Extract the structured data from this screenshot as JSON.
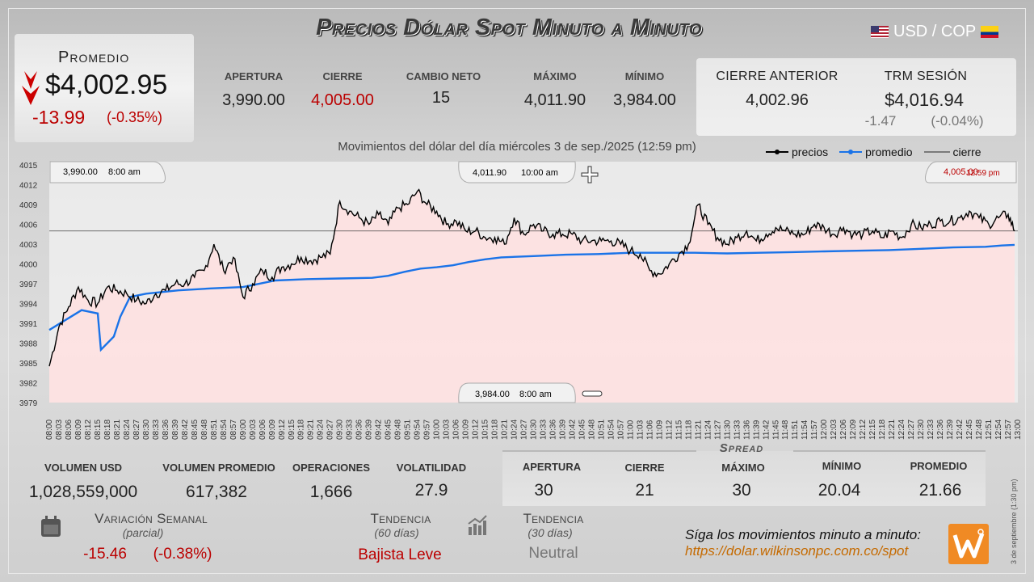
{
  "header": {
    "title": "Precios Dólar Spot Minuto a Minuto",
    "pair": "USD / COP"
  },
  "average": {
    "label": "Promedio",
    "price": "$4,002.95",
    "change": "-13.99",
    "change_pct": "(-0.35%)"
  },
  "stats": {
    "apertura": {
      "label": "APERTURA",
      "value": "3,990.00"
    },
    "cierre": {
      "label": "CIERRE",
      "value": "4,005.00"
    },
    "cambio_neto": {
      "label": "CAMBIO NETO",
      "value": "15"
    },
    "maximo": {
      "label": "MÁXIMO",
      "value": "4,011.90"
    },
    "minimo": {
      "label": "MÍNIMO",
      "value": "3,984.00"
    }
  },
  "previous": {
    "cierre_anterior_label": "CIERRE ANTERIOR",
    "cierre_anterior_value": "4,002.96",
    "trm_label": "TRM SESIÓN",
    "trm_value": "$4,016.94",
    "trm_change": "-1.47",
    "trm_pct": "(-0.04%)"
  },
  "chart_title": "Movimientos del dólar del día miércoles 3 de sep./2025 (12:59 pm)",
  "legend": {
    "precios": "precios",
    "promedio": "promedio",
    "cierre": "cierre"
  },
  "colors": {
    "precios": "#000000",
    "promedio": "#1a73e8",
    "cierre": "#444444",
    "fill": "#ffe0e0",
    "negative": "#bb0000"
  },
  "callouts": {
    "open_price": "3,990.00",
    "open_time": "8:00 am",
    "max_price": "4,011.90",
    "max_time": "10:00 am",
    "close_price": "4,005.00",
    "close_time": "12:59 pm",
    "min_price": "3,984.00",
    "min_time": "8:00 am"
  },
  "chart_data": {
    "type": "line",
    "ylim": [
      3979,
      4015.5
    ],
    "yticks": [
      3979,
      3982,
      3985,
      3988,
      3991,
      3994,
      3997,
      4000,
      4003,
      4006,
      4009,
      4012,
      4015
    ],
    "xticks": [
      "08:00",
      "08:03",
      "08:06",
      "08:09",
      "08:12",
      "08:15",
      "08:18",
      "08:21",
      "08:24",
      "08:27",
      "08:30",
      "08:33",
      "08:36",
      "08:39",
      "08:42",
      "08:45",
      "08:48",
      "08:51",
      "08:54",
      "08:57",
      "09:00",
      "09:03",
      "09:06",
      "09:09",
      "09:12",
      "09:15",
      "09:18",
      "09:21",
      "09:24",
      "09:27",
      "09:30",
      "09:33",
      "09:36",
      "09:39",
      "09:42",
      "09:45",
      "09:48",
      "09:51",
      "09:54",
      "09:57",
      "10:00",
      "10:03",
      "10:06",
      "10:09",
      "10:12",
      "10:15",
      "10:18",
      "10:21",
      "10:24",
      "10:27",
      "10:30",
      "10:33",
      "10:36",
      "10:39",
      "10:42",
      "10:45",
      "10:48",
      "10:51",
      "10:54",
      "10:57",
      "11:00",
      "11:03",
      "11:06",
      "11:09",
      "11:12",
      "11:15",
      "11:18",
      "11:21",
      "11:24",
      "11:27",
      "11:30",
      "11:33",
      "11:36",
      "11:39",
      "11:42",
      "11:45",
      "11:48",
      "11:51",
      "11:54",
      "11:57",
      "12:00",
      "12:03",
      "12:06",
      "12:09",
      "12:12",
      "12:15",
      "12:18",
      "12:21",
      "12:24",
      "12:27",
      "12:30",
      "12:33",
      "12:36",
      "12:39",
      "12:42",
      "12:45",
      "12:48",
      "12:51",
      "12:54",
      "12:57",
      "13:00"
    ],
    "series": [
      {
        "name": "precios",
        "x": [
          0,
          3,
          6,
          9,
          12,
          15,
          18,
          21,
          24,
          27,
          30,
          33,
          36,
          39,
          42,
          45,
          48,
          51,
          54,
          57,
          60,
          63,
          66,
          69,
          72,
          75,
          78,
          81,
          84,
          87,
          90,
          93,
          96,
          99,
          102,
          105,
          108,
          111,
          114,
          117,
          120,
          123,
          126,
          129,
          132,
          135,
          138,
          141,
          144,
          147,
          150,
          153,
          156,
          159,
          162,
          165,
          168,
          171,
          174,
          177,
          180,
          183,
          186,
          189,
          192,
          195,
          198,
          201,
          204,
          207,
          210,
          213,
          216,
          219,
          222,
          225,
          228,
          231,
          234,
          237,
          240,
          243,
          246,
          249,
          252,
          255,
          258,
          261,
          264,
          267,
          270,
          273,
          276,
          279,
          282,
          285,
          288,
          291,
          294,
          297,
          299
        ],
        "values": [
          3984.5,
          3990.5,
          3993.5,
          3996.5,
          3994.5,
          3994,
          3996.5,
          3996,
          3995.5,
          3994.5,
          3994,
          3995.5,
          3996,
          3997,
          3997,
          3998,
          3999,
          4003,
          3999,
          4001,
          3995,
          3997,
          3999,
          3998,
          3999.5,
          4000,
          4001,
          4000.5,
          4001,
          4001.5,
          4009.5,
          4008,
          4007,
          4006,
          4007.5,
          4006,
          4008.5,
          4009,
          4011,
          4009,
          4008,
          4006,
          4006.5,
          4005,
          4005,
          4004,
          4004,
          4003,
          4007,
          4004.5,
          4006,
          4005,
          4004.5,
          4004.5,
          4004.5,
          4003.5,
          4003.5,
          4003.5,
          4003.5,
          4003,
          4002,
          4001.5,
          3999,
          3998.5,
          4000,
          4001.5,
          4003,
          4009,
          4006,
          4004,
          4003,
          4004,
          4005,
          4003.5,
          4004.5,
          4005.5,
          4005,
          4004.5,
          4004.5,
          4006,
          4005.5,
          4004.5,
          4005.5,
          4004.5,
          4004.5,
          4005,
          4004,
          4005,
          4004,
          4006,
          4005.5,
          4006,
          4006.5,
          4006.5,
          4007,
          4008,
          4007,
          4006,
          4007,
          4007.5,
          4005
        ]
      },
      {
        "name": "promedio",
        "x": [
          0,
          10,
          15,
          16,
          20,
          22,
          25,
          28,
          30,
          40,
          50,
          60,
          63,
          70,
          80,
          90,
          100,
          105,
          110,
          115,
          120,
          125,
          130,
          135,
          140,
          150,
          160,
          170,
          175,
          180,
          190,
          200,
          210,
          220,
          230,
          240,
          250,
          260,
          270,
          280,
          290,
          295,
          299
        ],
        "values": [
          3990,
          3993,
          3992.5,
          3987,
          3989,
          3992,
          3995,
          3995.3,
          3995.5,
          3996,
          3996.3,
          3996.5,
          3996.8,
          3997.5,
          3997.7,
          3997.8,
          3997.9,
          3998.2,
          3998.8,
          3999.3,
          3999.5,
          3999.8,
          4000.3,
          4000.7,
          4001,
          4001.2,
          4001.4,
          4001.5,
          4001.6,
          4001.7,
          4001.7,
          4001.7,
          4001.6,
          4001.7,
          4001.8,
          4001.9,
          4002.0,
          4002.1,
          4002.3,
          4002.5,
          4002.6,
          4002.8,
          4002.9
        ]
      },
      {
        "name": "cierre",
        "values": [
          4005
        ]
      }
    ]
  },
  "bottom": {
    "volumen_usd": {
      "label": "VOLUMEN USD",
      "value": "1,028,559,000"
    },
    "volumen_promedio": {
      "label": "VOLUMEN PROMEDIO",
      "value": "617,382"
    },
    "operaciones": {
      "label": "OPERACIONES",
      "value": "1,666"
    },
    "volatilidad": {
      "label": "VOLATILIDAD",
      "value": "27.9"
    }
  },
  "spread": {
    "title": "Spread",
    "apertura": {
      "label": "APERTURA",
      "value": "30"
    },
    "cierre": {
      "label": "CIERRE",
      "value": "21"
    },
    "maximo": {
      "label": "MÁXIMO",
      "value": "30"
    },
    "minimo": {
      "label": "MÍNIMO",
      "value": "20.04"
    },
    "promedio": {
      "label": "PROMEDIO",
      "value": "21.66"
    }
  },
  "weekly": {
    "label": "Variación Semanal",
    "sub": "(parcial)",
    "value": "-15.46",
    "pct": "(-0.38%)"
  },
  "trend60": {
    "label": "Tendencia",
    "sub": "(60 días)",
    "value": "Bajista Leve"
  },
  "trend30": {
    "label": "Tendencia",
    "sub": "(30 días)",
    "value": "Neutral"
  },
  "footer": {
    "text": "Síga los movimientos minuto a minuto:",
    "link": "https://dolar.wilkinsonpc.com.co/spot",
    "vertical_date": "3 de septiembre (1:30 pm)"
  },
  "icons": {
    "calendar": "calendar-icon",
    "chart": "bar-chart-icon",
    "arrow": "down-arrow-icon",
    "logo": "wilkinson-logo"
  }
}
